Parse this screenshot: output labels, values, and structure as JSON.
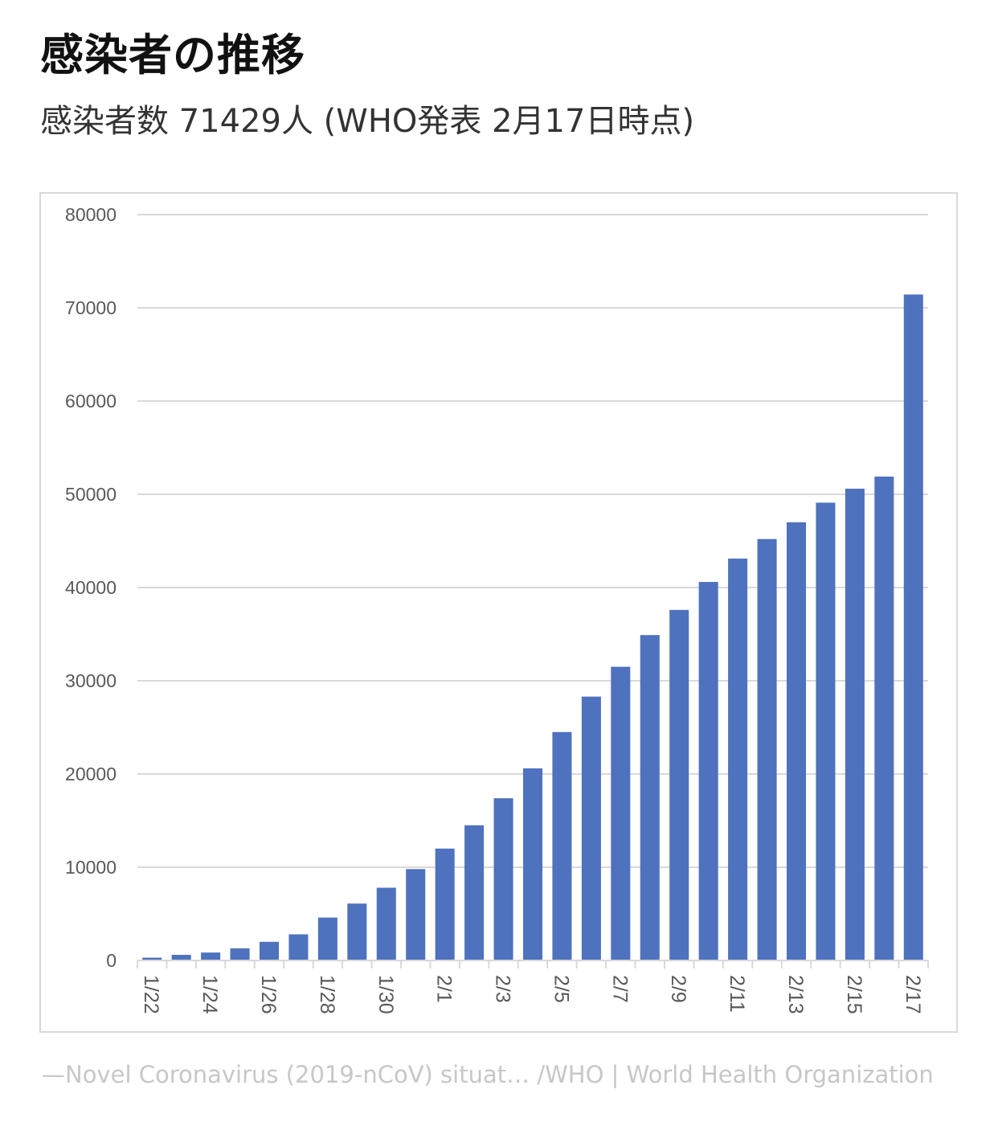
{
  "header": {
    "title": "感染者の推移",
    "subtitle": "感染者数 71429人 (WHO発表 2月17日時点)"
  },
  "source": {
    "caption": "—Novel Coronavirus (2019-nCoV) situat… /WHO | World Health Organization"
  },
  "colors": {
    "bar": "#4f72be",
    "grid": "#d9d9d9",
    "tick_text": "#595959",
    "caption": "#c7c7c7"
  },
  "chart_data": {
    "type": "bar",
    "title": "",
    "xlabel": "",
    "ylabel": "",
    "ylim": [
      0,
      80000
    ],
    "yticks": [
      0,
      10000,
      20000,
      30000,
      40000,
      50000,
      60000,
      70000,
      80000
    ],
    "grid": true,
    "legend": "none",
    "categories": [
      "1/22",
      "1/23",
      "1/24",
      "1/25",
      "1/26",
      "1/27",
      "1/28",
      "1/29",
      "1/30",
      "1/31",
      "2/1",
      "2/2",
      "2/3",
      "2/4",
      "2/5",
      "2/6",
      "2/7",
      "2/8",
      "2/9",
      "2/10",
      "2/11",
      "2/12",
      "2/13",
      "2/14",
      "2/15",
      "2/16",
      "2/17"
    ],
    "tick_labels": [
      "1/22",
      "",
      "1/24",
      "",
      "1/26",
      "",
      "1/28",
      "",
      "1/30",
      "",
      "2/1",
      "",
      "2/3",
      "",
      "2/5",
      "",
      "2/7",
      "",
      "2/9",
      "",
      "2/11",
      "",
      "2/13",
      "",
      "2/15",
      "",
      "2/17"
    ],
    "values": [
      300,
      600,
      850,
      1300,
      2000,
      2800,
      4600,
      6100,
      7800,
      9800,
      12000,
      14500,
      17400,
      20600,
      24500,
      28300,
      31500,
      34900,
      37600,
      40600,
      43100,
      45200,
      47000,
      49100,
      50600,
      51900,
      71429
    ]
  }
}
